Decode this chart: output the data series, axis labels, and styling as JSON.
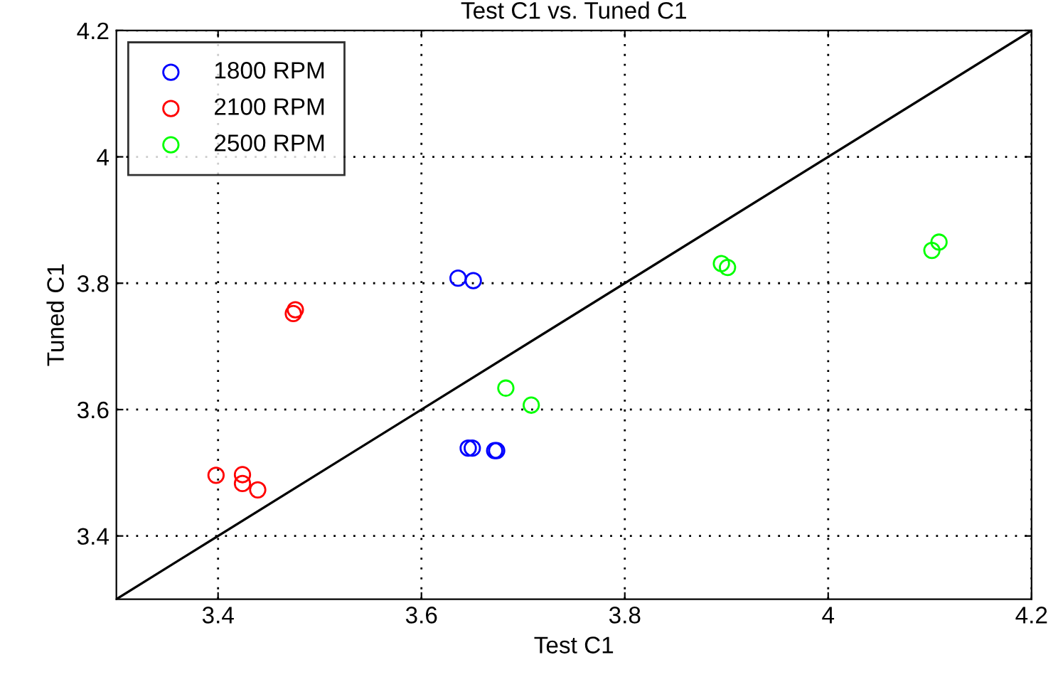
{
  "chart_data": {
    "type": "scatter",
    "title": "Test C1 vs. Tuned C1",
    "xlabel": "Test C1",
    "ylabel": "Tuned C1",
    "xlim": [
      3.3,
      4.2
    ],
    "ylim": [
      3.3,
      4.2
    ],
    "xticks": [
      3.4,
      3.6,
      3.8,
      4,
      4.2
    ],
    "yticks": [
      3.4,
      3.6,
      3.8,
      4,
      4.2
    ],
    "grid": true,
    "legend": "top left",
    "marker": "circle",
    "series": [
      {
        "name": "1800 RPM",
        "color": "#0000ff",
        "x": [
          3.636,
          3.651,
          3.646,
          3.65,
          3.672,
          3.674
        ],
        "values": [
          3.808,
          3.804,
          3.539,
          3.539,
          3.535,
          3.535
        ]
      },
      {
        "name": "2100 RPM",
        "color": "#ff0000",
        "x": [
          3.474,
          3.476,
          3.398,
          3.424,
          3.424,
          3.439
        ],
        "values": [
          3.752,
          3.758,
          3.496,
          3.497,
          3.483,
          3.473
        ]
      },
      {
        "name": "2500 RPM",
        "color": "#00ff00",
        "x": [
          3.683,
          3.708,
          3.895,
          3.901,
          4.102,
          4.109
        ],
        "values": [
          3.634,
          3.607,
          3.831,
          3.825,
          3.852,
          3.865
        ]
      },
      {
        "type": "line",
        "color": "#000000",
        "x": [
          3.3,
          4.2
        ],
        "values": [
          3.3,
          4.2
        ],
        "marker": "none",
        "line_style": "solid"
      }
    ]
  }
}
